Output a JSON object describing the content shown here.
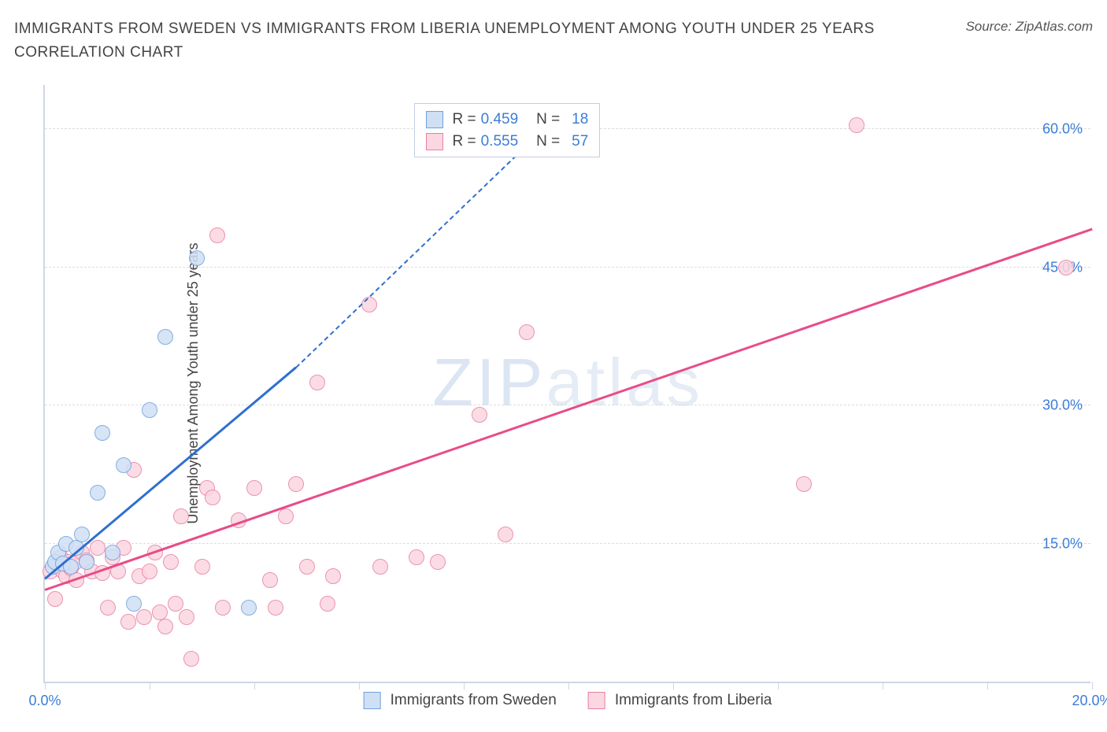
{
  "title": "IMMIGRANTS FROM SWEDEN VS IMMIGRANTS FROM LIBERIA UNEMPLOYMENT AMONG YOUTH UNDER 25 YEARS CORRELATION CHART",
  "source_label": "Source: ZipAtlas.com",
  "y_axis_label": "Unemployment Among Youth under 25 years",
  "watermark_bold": "ZIP",
  "watermark_thin": "atlas",
  "chart": {
    "type": "scatter",
    "xlim": [
      0,
      20
    ],
    "ylim": [
      0,
      65
    ],
    "x_ticks": [
      0,
      2,
      4,
      6,
      8,
      10,
      12,
      14,
      16,
      18,
      20
    ],
    "x_tick_labels_visible": {
      "0": "0.0%",
      "20": "20.0%"
    },
    "y_gridlines": [
      15,
      30,
      45,
      60
    ],
    "y_tick_labels": {
      "15": "15.0%",
      "30": "30.0%",
      "45": "45.0%",
      "60": "60.0%"
    },
    "background_color": "#ffffff",
    "grid_color": "#dddddd",
    "axis_color": "#cfd6e4",
    "marker_radius": 10,
    "series": [
      {
        "name": "Immigrants from Sweden",
        "fill": "#cfe0f5",
        "stroke": "#6fa0de",
        "R": "0.459",
        "N": "18",
        "trend": {
          "x1": 0.0,
          "y1": 11.0,
          "x2": 4.8,
          "y2": 34.0,
          "color": "#2f6fd0",
          "dash_to": {
            "x": 9.0,
            "y": 57.0
          }
        },
        "points": [
          [
            0.15,
            12.5
          ],
          [
            0.2,
            13.0
          ],
          [
            0.25,
            14.0
          ],
          [
            0.35,
            12.8
          ],
          [
            0.4,
            15.0
          ],
          [
            0.6,
            14.5
          ],
          [
            0.7,
            16.0
          ],
          [
            0.8,
            13.0
          ],
          [
            1.0,
            20.5
          ],
          [
            1.1,
            27.0
          ],
          [
            1.3,
            14.0
          ],
          [
            1.5,
            23.5
          ],
          [
            1.7,
            8.5
          ],
          [
            2.0,
            29.5
          ],
          [
            2.3,
            37.5
          ],
          [
            2.9,
            46.0
          ],
          [
            3.9,
            8.0
          ],
          [
            0.5,
            12.5
          ]
        ]
      },
      {
        "name": "Immigrants from Liberia",
        "fill": "#fbd7e1",
        "stroke": "#e97fa4",
        "R": "0.555",
        "N": "57",
        "trend": {
          "x1": 0.0,
          "y1": 9.8,
          "x2": 20.0,
          "y2": 49.0,
          "color": "#e84c88"
        },
        "points": [
          [
            0.1,
            12.0
          ],
          [
            0.2,
            9.0
          ],
          [
            0.25,
            12.5
          ],
          [
            0.3,
            13.5
          ],
          [
            0.35,
            12.0
          ],
          [
            0.4,
            11.5
          ],
          [
            0.45,
            13.0
          ],
          [
            0.5,
            12.3
          ],
          [
            0.55,
            12.8
          ],
          [
            0.6,
            11.0
          ],
          [
            0.7,
            14.0
          ],
          [
            0.8,
            13.2
          ],
          [
            0.9,
            12.0
          ],
          [
            1.0,
            14.5
          ],
          [
            1.1,
            11.8
          ],
          [
            1.2,
            8.0
          ],
          [
            1.3,
            13.5
          ],
          [
            1.4,
            12.0
          ],
          [
            1.5,
            14.5
          ],
          [
            1.6,
            6.5
          ],
          [
            1.7,
            23.0
          ],
          [
            1.8,
            11.5
          ],
          [
            1.9,
            7.0
          ],
          [
            2.0,
            12.0
          ],
          [
            2.1,
            14.0
          ],
          [
            2.2,
            7.5
          ],
          [
            2.3,
            6.0
          ],
          [
            2.4,
            13.0
          ],
          [
            2.5,
            8.5
          ],
          [
            2.6,
            18.0
          ],
          [
            2.7,
            7.0
          ],
          [
            2.8,
            2.5
          ],
          [
            3.0,
            12.5
          ],
          [
            3.1,
            21.0
          ],
          [
            3.2,
            20.0
          ],
          [
            3.3,
            48.5
          ],
          [
            3.4,
            8.0
          ],
          [
            3.7,
            17.5
          ],
          [
            4.0,
            21.0
          ],
          [
            4.3,
            11.0
          ],
          [
            4.4,
            8.0
          ],
          [
            4.6,
            18.0
          ],
          [
            4.8,
            21.5
          ],
          [
            5.0,
            12.5
          ],
          [
            5.2,
            32.5
          ],
          [
            5.4,
            8.5
          ],
          [
            5.5,
            11.5
          ],
          [
            6.2,
            41.0
          ],
          [
            6.4,
            12.5
          ],
          [
            7.1,
            13.5
          ],
          [
            7.5,
            13.0
          ],
          [
            8.3,
            29.0
          ],
          [
            8.8,
            16.0
          ],
          [
            9.2,
            38.0
          ],
          [
            14.5,
            21.5
          ],
          [
            15.5,
            60.5
          ],
          [
            19.5,
            45.0
          ]
        ]
      }
    ],
    "stats_box": {
      "x_percent": 35,
      "y_percent": 0
    },
    "legend_labels": [
      "Immigrants from Sweden",
      "Immigrants from Liberia"
    ]
  }
}
